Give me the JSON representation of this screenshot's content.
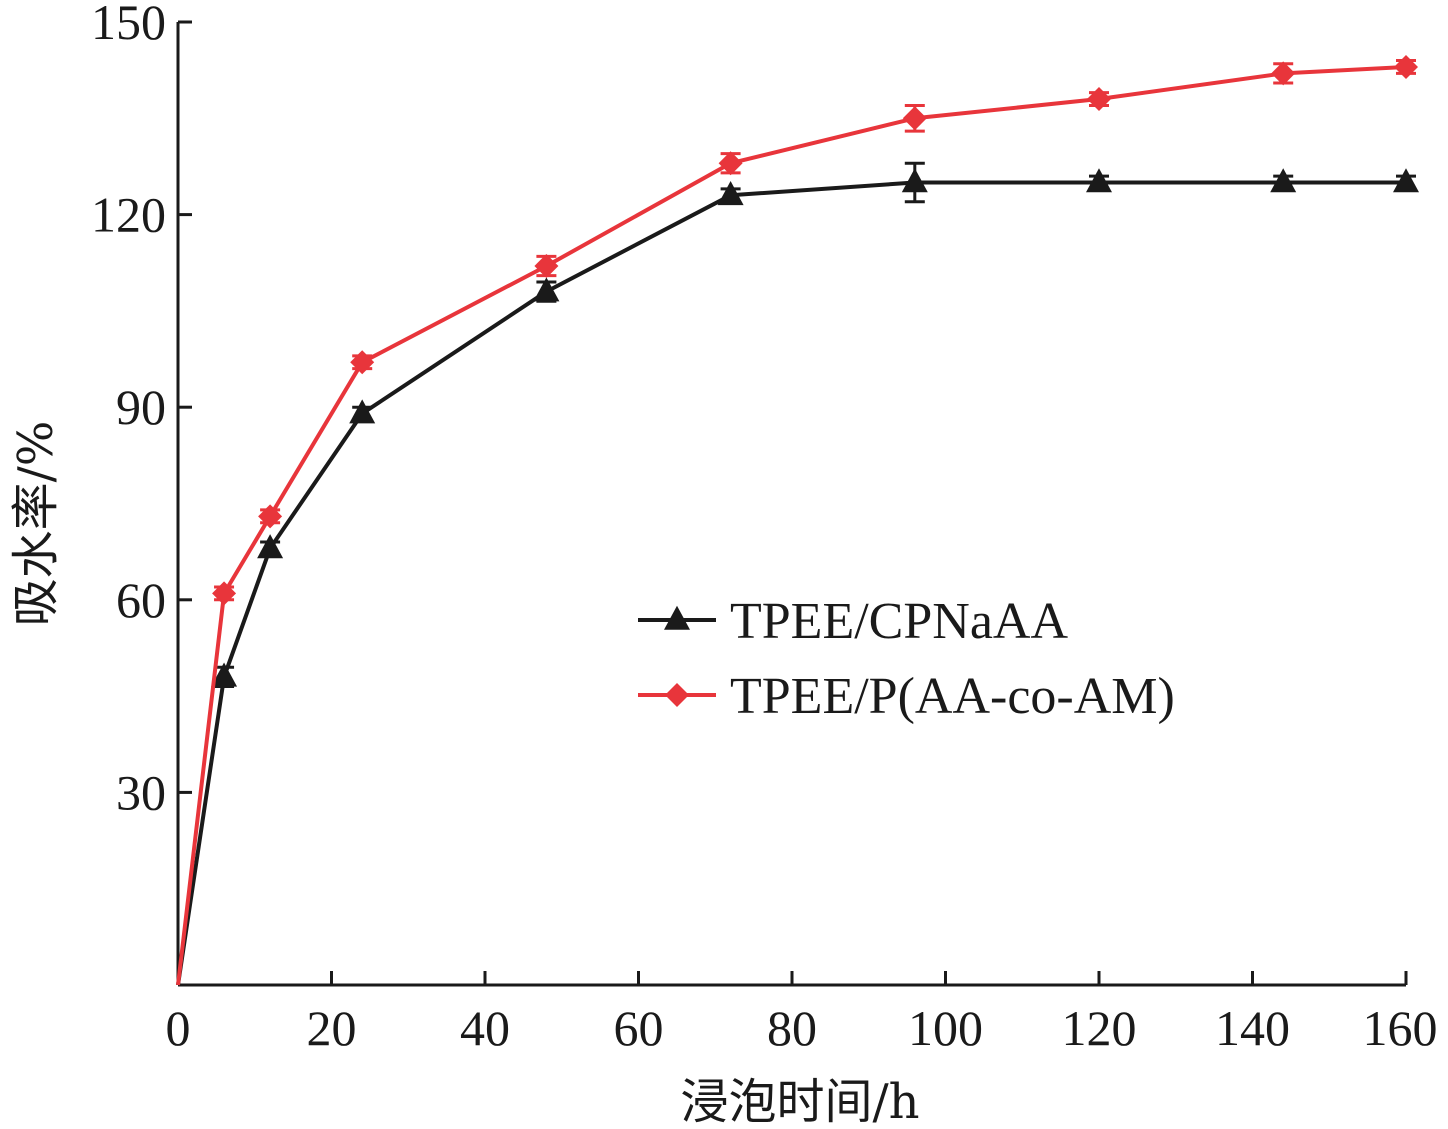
{
  "chart_data": {
    "type": "line",
    "xlabel": "浸泡时间/h",
    "ylabel": "吸水率/%",
    "xlim": [
      0,
      160
    ],
    "ylim": [
      0,
      150
    ],
    "xticks": [
      0,
      20,
      40,
      60,
      80,
      100,
      120,
      140,
      160
    ],
    "yticks": [
      30,
      60,
      90,
      120,
      150
    ],
    "grid": false,
    "legend_position": "center-right",
    "series": [
      {
        "name": "TPEE/CPNaAA",
        "color": "#1a1a1a",
        "marker": "triangle",
        "x": [
          0,
          6,
          12,
          24,
          48,
          72,
          96,
          120,
          144,
          160
        ],
        "y": [
          0,
          48,
          68,
          89,
          108,
          123,
          125,
          125,
          125,
          125
        ],
        "error": [
          0,
          1.5,
          1,
          1,
          1.5,
          1,
          3,
          1,
          1,
          1
        ]
      },
      {
        "name": "TPEE/P(AA-co-AM)",
        "color": "#e8353b",
        "marker": "diamond",
        "x": [
          0,
          6,
          12,
          24,
          48,
          72,
          96,
          120,
          144,
          160
        ],
        "y": [
          0,
          61,
          73,
          97,
          112,
          128,
          135,
          138,
          142,
          143
        ],
        "error": [
          0,
          1,
          1,
          1,
          1.5,
          1.5,
          2,
          1,
          1.5,
          1
        ]
      }
    ]
  }
}
